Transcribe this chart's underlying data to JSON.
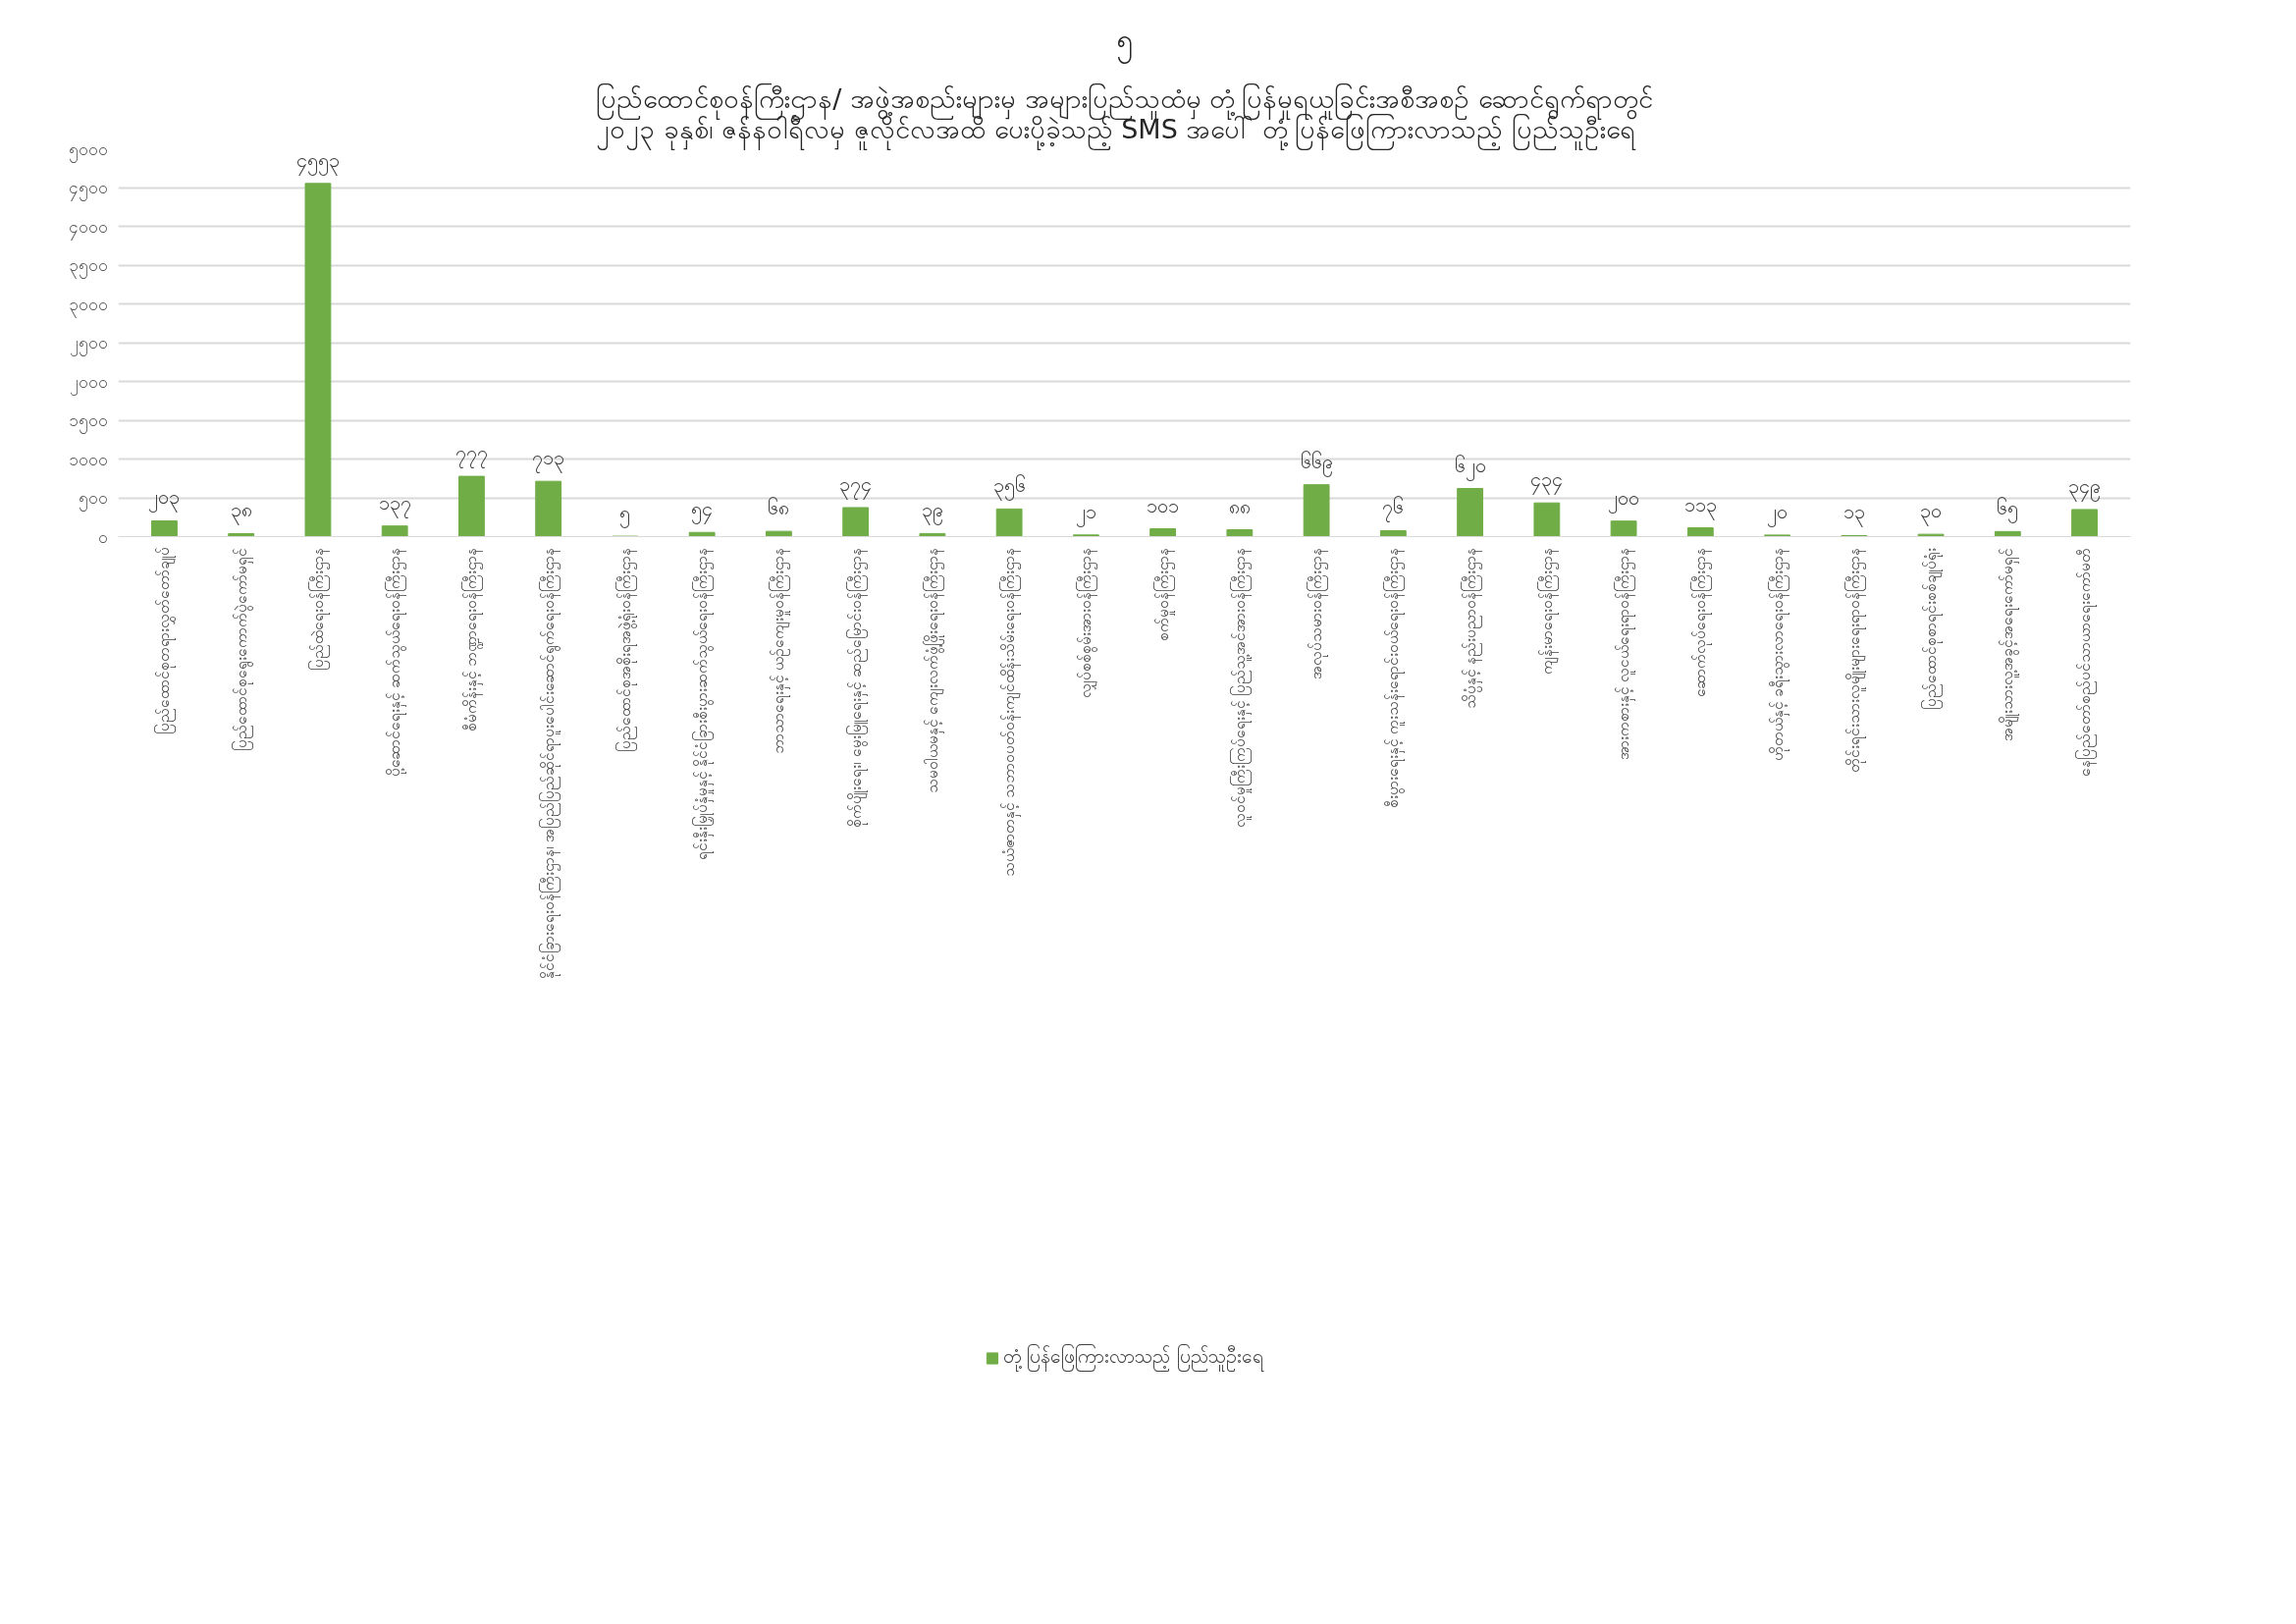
{
  "chart_data": {
    "type": "bar",
    "title": "ပြည်ထောင်စုဝန်ကြီးဌာန/ အဖွဲ့အစည်းများမှ အများပြည်သူထံမှ တုံ့ပြန်မှုရယူခြင်းအစီအစဉ် ဆောင်ရွက်ရာတွင်\n၂၀၂၃ ခုနှစ်၊ ဇန်နဝါရီလမှ ဇူလိုင်လအထိ ပေးပို့ခဲ့သည့် SMS အပေါ် တုံ့ပြန်ဖြေကြားလာသည့် ပြည်သူဦးရေ",
    "annotations": [
      "၅"
    ],
    "categories": [
      "ပြည်ထောင်စုတရားလွှတ်တော်ချုပ်",
      "ပြည်ထောင်စုရွေးကောက်ပွဲကော်မရှင်",
      "ပြည်ထဲရေးဝန်ကြီးဌာန",
      "ပို့ဆောင်ရေးနှင့် ဆက်သွယ်ရေးဝန်ကြီးဌာန",
      "စီမံကိန်းနှင့် ဘဏ္ဍာရေးဝန်ကြီးဌာန",
      "နိုင်ငံခြားရေးဝန်ကြီးဌာန၊ အပြည်ပြည်ဆိုင်ရာပူးပေါင်းဆောင်ရွက်ရေးဝန်ကြီးဌာန",
      "ပြည်ထောင်စုအစိုးရအဖွဲ့ရုံးဝန်ကြီးဌာန",
      "ရင်းနှီးမြှုပ်နှံမှုနှင့် နိုင်ငံခြားစီးပွားဆက်သွယ်ရေးဝန်ကြီးဌာန",
      "ဘာသာရေးနှင့် ယဉ်ကျေးမှုဝန်ကြီးဌာန",
      "စိုက်ပျိုးရေး၊ မွေးမြူရေးနှင့် ဆည်မြောင်းဝန်ကြီးဌာန",
      "သမဝါယမနှင့် ကျေးလက်ဖွံ့ဖြိုးရေးဝန်ကြီးဌာန",
      "သယံဇာတနှင့် သဘာဝပတ်ဝန်းကျင်ထိန်းသိမ်းရေးဝန်ကြီးဌာန",
      "လျှပ်စစ်စွမ်းအားဝန်ကြီးဌာန",
      "စက်မှုဝန်ကြီးဌာန",
      "လူဝင်မှုကြီးကြပ်ရေးနှင့် ပြည်သူ့အင်အားဝန်ကြီးဌာန",
      "အလုပ်သမားဝန်ကြီးဌာန",
      "စီးပွားရေးနှင့် ကူးသန်းရောင်းဝယ်ရေးဝန်ကြီးဌာန",
      "သိပ္ပံနှင့် နည်းပညာဝန်ကြီးဌာန",
      "ကျန်းမာရေးဝန်ကြီးဌာန",
      "အားကစားနှင့် လူငယ်ရေးရာဝန်ကြီးဌာန",
      "ဆောက်လုပ်ရေးဝန်ကြီးဌာန",
      "ဟိုတယ်နှင့် ခရီးသွားလာရေးဝန်ကြီးဌာန",
      "တိုင်းရင်းသားလူမျိုးများရေးရာဝန်ကြီးဌာန",
      "ပြည်ထောင်စုစာရင်းစစ်ချုပ်ရုံး",
      "အမျိုးသားလူ့အခွင့်အရေးကော်မရှင်",
      "နေပြည်တော်စည်ပင်သာယာရေးကော်မတီ"
    ],
    "series": [
      {
        "name": "တုံ့ပြန်ဖြေကြားလာသည့် ပြည်သူဦးရေ",
        "color": "#70ad47",
        "values": [
          203,
          38,
          4553,
          137,
          777,
          713,
          5,
          54,
          68,
          374,
          39,
          356,
          21,
          101,
          88,
          669,
          76,
          620,
          434,
          200,
          113,
          20,
          13,
          30,
          65,
          349
        ],
        "value_labels": [
          "၂၀၃",
          "၃၈",
          "၄၅၅၃",
          "၁၃၇",
          "၇၇၇",
          "၇၁၃",
          "၅",
          "၅၄",
          "၆၈",
          "၃၇၄",
          "၃၉",
          "၃၅၆",
          "၂၁",
          "၁၀၁",
          "၈၈",
          "၆၆၉",
          "၇၆",
          "၆၂၀",
          "၄၃၄",
          "၂၀၀",
          "၁၁၃",
          "၂၀",
          "၁၃",
          "၃၀",
          "၆၅",
          "၃၄၉"
        ]
      }
    ],
    "ylim": [
      0,
      5000
    ],
    "yticks": [
      {
        "value": 0,
        "label": "၀"
      },
      {
        "value": 500,
        "label": "၅၀၀"
      },
      {
        "value": 1000,
        "label": "၁၀၀၀"
      },
      {
        "value": 1500,
        "label": "၁၅၀၀"
      },
      {
        "value": 2000,
        "label": "၂၀၀၀"
      },
      {
        "value": 2500,
        "label": "၂၅၀၀"
      },
      {
        "value": 3000,
        "label": "၃၀၀၀"
      },
      {
        "value": 3500,
        "label": "၃၅၀၀"
      },
      {
        "value": 4000,
        "label": "၄၀၀၀"
      },
      {
        "value": 4500,
        "label": "၄၅၀၀"
      },
      {
        "value": 5000,
        "label": "၅၀၀၀"
      }
    ],
    "grid": "y",
    "legend": "bottom"
  }
}
